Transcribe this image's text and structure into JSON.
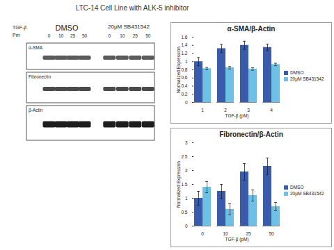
{
  "title": "LTC-14 Cell Line with ALK-5 inhibitor",
  "blot": {
    "treatment": "TGF-β",
    "unit": "Pm",
    "groups": [
      "DMSO",
      "20μM SB431542"
    ],
    "lanes": [
      "0",
      "10",
      "25",
      "50"
    ],
    "rows": [
      "α-SMA",
      "Fibronectin",
      "β-Actin"
    ]
  },
  "chart_data": [
    {
      "type": "bar",
      "title": "α-SMA/β-Actin",
      "x_label": "TGF-β (pM)",
      "y_label": "Normalized Expression",
      "categories": [
        "1",
        "2",
        "3",
        "4"
      ],
      "series": [
        {
          "name": "DMSO",
          "color": "#3a5ba9",
          "values": [
            1.0,
            1.32,
            1.4,
            1.35
          ],
          "errors": [
            0.1,
            0.1,
            0.1,
            0.08
          ]
        },
        {
          "name": "20μM SB431542",
          "color": "#6ec1e4",
          "values": [
            0.83,
            0.85,
            0.82,
            0.93
          ],
          "errors": [
            0.03,
            0.03,
            0.03,
            0.03
          ]
        }
      ],
      "ylim": [
        0,
        1.6
      ],
      "yticks": [
        0,
        0.2,
        0.4,
        0.6,
        0.8,
        1,
        1.2,
        1.4,
        1.6
      ],
      "grid": false,
      "legend": "right"
    },
    {
      "type": "bar",
      "title": "Fibronectin/β-Actin",
      "x_label": "TGF-β (pM)",
      "y_label": "Normalized Expression",
      "categories": [
        "0",
        "10",
        "25",
        "50"
      ],
      "series": [
        {
          "name": "DMSO",
          "color": "#3a5ba9",
          "values": [
            1.0,
            1.25,
            1.95,
            2.15
          ],
          "errors": [
            0.25,
            0.25,
            0.3,
            0.3
          ]
        },
        {
          "name": "20μM SB431542",
          "color": "#6ec1e4",
          "values": [
            1.4,
            0.6,
            1.1,
            0.7
          ],
          "errors": [
            0.2,
            0.2,
            0.2,
            0.15
          ]
        }
      ],
      "ylim": [
        0,
        3
      ],
      "yticks": [
        0,
        0.5,
        1,
        1.5,
        2,
        2.5,
        3
      ],
      "grid": false,
      "legend": "right"
    }
  ]
}
